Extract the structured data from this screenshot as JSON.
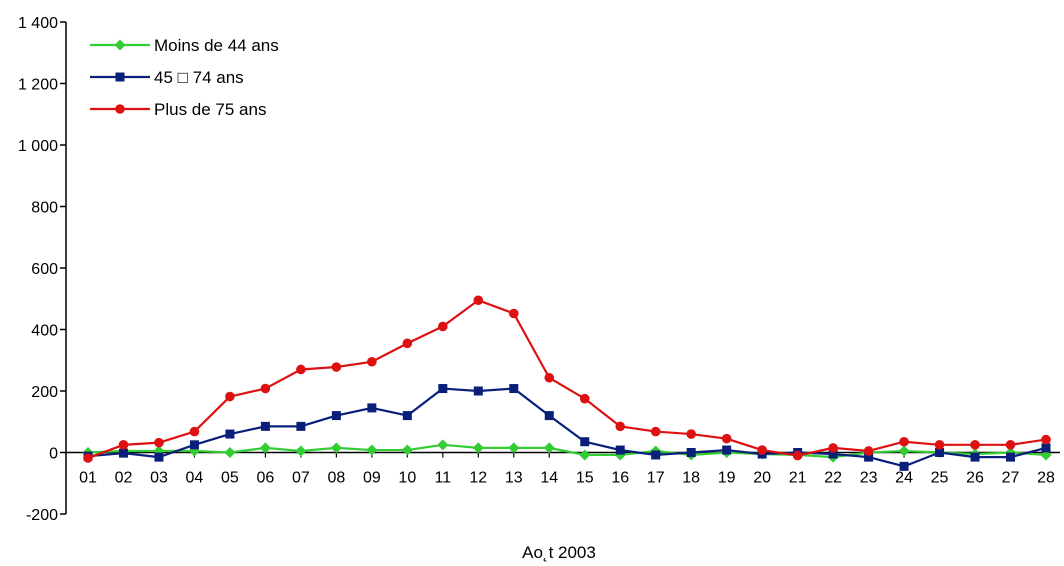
{
  "chart_data": {
    "type": "line",
    "title": "",
    "xlabel": "Ao˛t 2003",
    "ylabel": "",
    "ylim": [
      -200,
      1400
    ],
    "yticks": [
      "-200",
      "0",
      "200",
      "400",
      "600",
      "800",
      "1 000",
      "1 200",
      "1 400"
    ],
    "ytick_values": [
      -200,
      0,
      200,
      400,
      600,
      800,
      1000,
      1200,
      1400
    ],
    "categories": [
      "01",
      "02",
      "03",
      "04",
      "05",
      "06",
      "07",
      "08",
      "09",
      "10",
      "11",
      "12",
      "13",
      "14",
      "15",
      "16",
      "17",
      "18",
      "19",
      "20",
      "21",
      "22",
      "23",
      "24",
      "25",
      "26",
      "27",
      "28"
    ],
    "grid": false,
    "legend_position": "top-left",
    "series": [
      {
        "name": "Moins de 44 ans",
        "color": "#33cc33",
        "marker": "diamond",
        "values": [
          0,
          5,
          5,
          5,
          0,
          15,
          5,
          15,
          8,
          8,
          25,
          15,
          15,
          15,
          -8,
          -8,
          5,
          -8,
          0,
          -5,
          -8,
          -15,
          0,
          5,
          0,
          -5,
          0,
          -8
        ]
      },
      {
        "name": "45 □ 74 ans",
        "color": "#0a1f7a",
        "marker": "square",
        "values": [
          -12,
          -2,
          -15,
          25,
          60,
          85,
          85,
          120,
          145,
          120,
          208,
          200,
          208,
          120,
          35,
          8,
          -8,
          0,
          8,
          -5,
          0,
          -5,
          -15,
          -45,
          0,
          -15,
          -15,
          15
        ]
      },
      {
        "name": "Plus de 75 ans",
        "color": "#dd1111",
        "marker": "circle",
        "values": [
          -18,
          25,
          32,
          68,
          182,
          208,
          270,
          278,
          295,
          355,
          410,
          495,
          452,
          243,
          175,
          85,
          68,
          60,
          45,
          8,
          -10,
          15,
          5,
          35,
          25,
          25,
          25,
          42
        ]
      }
    ]
  }
}
